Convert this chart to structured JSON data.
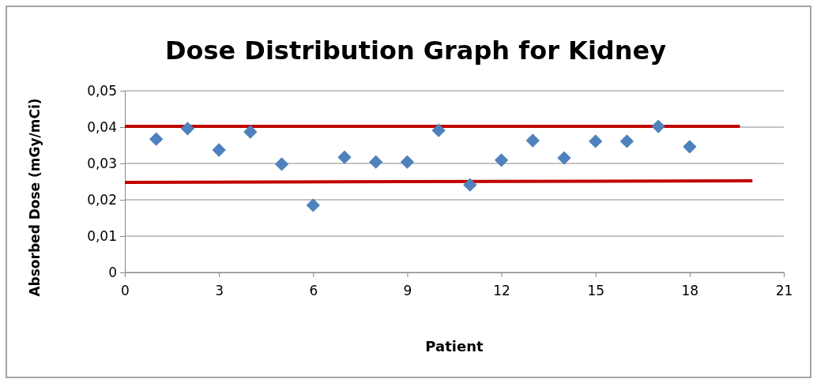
{
  "chart_data": {
    "type": "scatter",
    "title": "Dose Distribution Graph for Kidney",
    "xlabel": "Patient",
    "ylabel": "Absorbed Dose (mGy/mCi)",
    "x": [
      1,
      2,
      3,
      4,
      5,
      6,
      7,
      8,
      9,
      10,
      11,
      12,
      13,
      14,
      15,
      16,
      17,
      18
    ],
    "series": [
      {
        "color": "#4f81bd",
        "values": [
          0.0367,
          0.0396,
          0.0337,
          0.0387,
          0.0298,
          0.0185,
          0.0317,
          0.0304,
          0.0304,
          0.0391,
          0.0241,
          0.0309,
          0.0363,
          0.0315,
          0.0361,
          0.0361,
          0.0402,
          0.0346
        ]
      },
      {
        "type": "line",
        "marker": "none",
        "color": "#c00000",
        "x": [
          0,
          19.6
        ],
        "values": [
          0.0402,
          0.0402
        ]
      },
      {
        "type": "line",
        "marker": "none",
        "color": "#c00000",
        "x": [
          0,
          20
        ],
        "values": [
          0.0248,
          0.0252
        ]
      }
    ],
    "xlim": [
      0,
      21
    ],
    "xticks": [
      0,
      3,
      6,
      9,
      12,
      15,
      18,
      21
    ],
    "ylim": [
      0,
      0.05
    ],
    "yticks": [
      {
        "value": 0,
        "label": "0"
      },
      {
        "value": 0.01,
        "label": "0,01"
      },
      {
        "value": 0.02,
        "label": "0,02"
      },
      {
        "value": 0.03,
        "label": "0,03"
      },
      {
        "value": 0.04,
        "label": "0,04"
      },
      {
        "value": 0.05,
        "label": "0,05"
      }
    ],
    "grid": "y",
    "marker": "diamond",
    "line_style": "solid"
  }
}
